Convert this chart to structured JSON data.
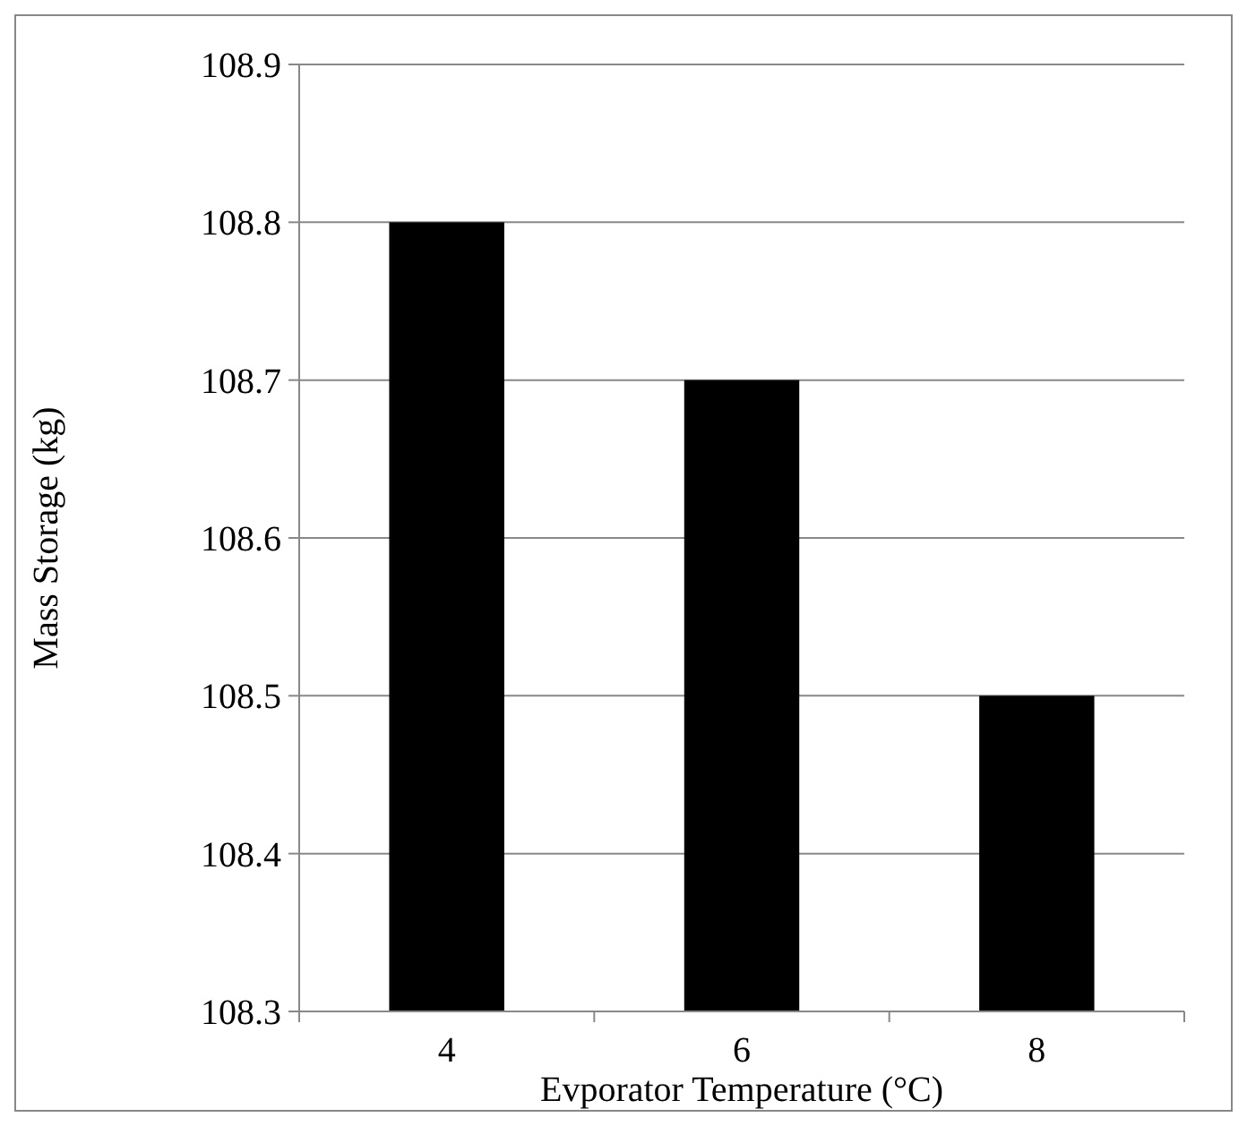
{
  "chart_data": {
    "type": "bar",
    "xlabel": "Evporator Temperature (°C)",
    "ylabel": "Mass Storage (kg)",
    "categories": [
      "4",
      "6",
      "8"
    ],
    "values": [
      108.8,
      108.7,
      108.5
    ],
    "color": "#000000",
    "ylim": [
      108.3,
      108.9
    ],
    "yticks": [
      108.3,
      108.4,
      108.5,
      108.6,
      108.7,
      108.8,
      108.9
    ],
    "grid": "y"
  }
}
